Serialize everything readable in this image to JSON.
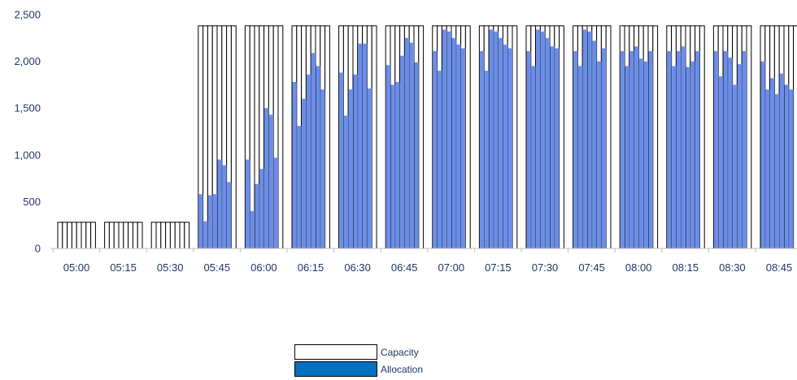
{
  "chart_data": {
    "type": "bar",
    "title": "",
    "xlabel": "",
    "ylabel": "",
    "ylim": [
      0,
      2500
    ],
    "y_ticks": [
      "0",
      "500",
      "1,000",
      "1,500",
      "2,000",
      "2,500"
    ],
    "y_tick_values": [
      0,
      500,
      1000,
      1500,
      2000,
      2500
    ],
    "grid": false,
    "legend_position": "bottom",
    "categories": [
      "05:00",
      "05:15",
      "05:30",
      "05:45",
      "06:00",
      "06:15",
      "06:30",
      "06:45",
      "07:00",
      "07:15",
      "07:30",
      "07:45",
      "08:00",
      "08:15",
      "08:30",
      "08:45"
    ],
    "sub_bars_per_category": 8,
    "series": [
      {
        "name": "Capacity",
        "color": "#ffffff",
        "border": "#000000",
        "values": [
          [
            280,
            280,
            280,
            280,
            280,
            280,
            280,
            280
          ],
          [
            280,
            280,
            280,
            280,
            280,
            280,
            280,
            280
          ],
          [
            280,
            280,
            280,
            280,
            280,
            280,
            280,
            280
          ],
          [
            2380,
            2380,
            2380,
            2380,
            2380,
            2380,
            2380,
            2380
          ],
          [
            2380,
            2380,
            2380,
            2380,
            2380,
            2380,
            2380,
            2380
          ],
          [
            2380,
            2380,
            2380,
            2380,
            2380,
            2380,
            2380,
            2380
          ],
          [
            2380,
            2380,
            2380,
            2380,
            2380,
            2380,
            2380,
            2380
          ],
          [
            2380,
            2380,
            2380,
            2380,
            2380,
            2380,
            2380,
            2380
          ],
          [
            2380,
            2380,
            2380,
            2380,
            2380,
            2380,
            2380,
            2380
          ],
          [
            2380,
            2380,
            2380,
            2380,
            2380,
            2380,
            2380,
            2380
          ],
          [
            2380,
            2380,
            2380,
            2380,
            2380,
            2380,
            2380,
            2380
          ],
          [
            2380,
            2380,
            2380,
            2380,
            2380,
            2380,
            2380,
            2380
          ],
          [
            2380,
            2380,
            2380,
            2380,
            2380,
            2380,
            2380,
            2380
          ],
          [
            2380,
            2380,
            2380,
            2380,
            2380,
            2380,
            2380,
            2380
          ],
          [
            2380,
            2380,
            2380,
            2380,
            2380,
            2380,
            2380,
            2380
          ],
          [
            2380,
            2380,
            2380,
            2380,
            2380,
            2380,
            2380,
            2380
          ]
        ]
      },
      {
        "name": "Allocation",
        "color": "#6b8ee8",
        "legend_color": "#0070c0",
        "values": [
          [
            0,
            0,
            0,
            0,
            0,
            0,
            0,
            0
          ],
          [
            0,
            0,
            0,
            0,
            0,
            0,
            0,
            0
          ],
          [
            0,
            0,
            0,
            0,
            0,
            0,
            0,
            0
          ],
          [
            580,
            290,
            570,
            580,
            950,
            890,
            710,
            0
          ],
          [
            950,
            400,
            690,
            850,
            1500,
            1430,
            970,
            0
          ],
          [
            1780,
            1310,
            1600,
            1860,
            2090,
            1950,
            1700,
            0
          ],
          [
            1880,
            1420,
            1700,
            1860,
            2190,
            2190,
            1710,
            0
          ],
          [
            1960,
            1750,
            1780,
            2060,
            2250,
            2200,
            1990,
            0
          ],
          [
            2110,
            1900,
            2340,
            2320,
            2250,
            2180,
            2140,
            0
          ],
          [
            2110,
            1900,
            2340,
            2320,
            2250,
            2180,
            2140,
            0
          ],
          [
            2110,
            1950,
            2340,
            2320,
            2250,
            2160,
            2140,
            0
          ],
          [
            2110,
            1950,
            2340,
            2320,
            2220,
            2000,
            2140,
            0
          ],
          [
            2110,
            1950,
            2110,
            2160,
            2030,
            2000,
            2110,
            0
          ],
          [
            2110,
            1950,
            2110,
            2160,
            1940,
            2000,
            2110,
            0
          ],
          [
            2110,
            1840,
            2110,
            2040,
            1750,
            1970,
            2110,
            0
          ],
          [
            2000,
            1700,
            1820,
            1650,
            1870,
            1750,
            1700,
            0
          ]
        ]
      }
    ]
  }
}
